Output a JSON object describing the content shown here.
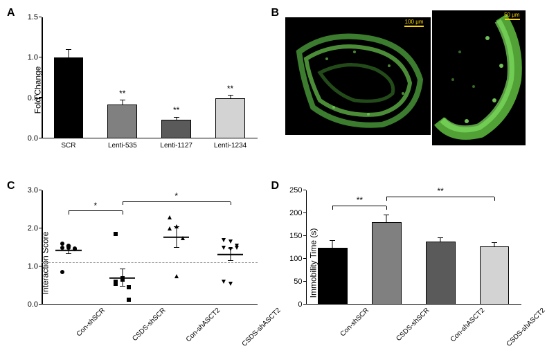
{
  "panelA": {
    "label": "A",
    "type": "bar",
    "ylabel": "Fold Change",
    "ylim": [
      0,
      1.5
    ],
    "yticks": [
      0.0,
      0.5,
      1.0,
      1.5
    ],
    "categories": [
      "SCR",
      "Lenti-535",
      "Lenti-1127",
      "Lenti-1234"
    ],
    "values": [
      1.0,
      0.42,
      0.23,
      0.5
    ],
    "errors": [
      0.1,
      0.05,
      0.03,
      0.03
    ],
    "bar_colors": [
      "#000000",
      "#808080",
      "#5a5a5a",
      "#d3d3d3"
    ],
    "sig_marks": [
      "",
      "**",
      "**",
      "**"
    ]
  },
  "panelB": {
    "label": "B",
    "left_scale": "100 μm",
    "right_scale": "50 μm"
  },
  "panelC": {
    "label": "C",
    "type": "scatter",
    "ylabel": "Interaction Score",
    "ylim": [
      0,
      3
    ],
    "yticks": [
      0,
      1,
      2,
      3
    ],
    "dashed_at": 1.1,
    "categories": [
      "Con-shSCR",
      "CSDS-shSCR",
      "Con-shASCT2",
      "CSDS-shASCT2"
    ],
    "markers": [
      "circle",
      "square",
      "triangle-up",
      "triangle-down"
    ],
    "groups": [
      {
        "points": [
          1.5,
          1.55,
          1.45,
          1.6,
          1.5,
          1.48,
          0.85
        ],
        "mean": 1.42,
        "sem": 0.1
      },
      {
        "points": [
          1.85,
          0.65,
          0.45,
          0.6,
          0.7,
          0.12,
          0.55
        ],
        "mean": 0.7,
        "sem": 0.22
      },
      {
        "points": [
          2.3,
          2.05,
          1.75,
          2.0,
          0.75
        ],
        "mean": 1.77,
        "sem": 0.27
      },
      {
        "points": [
          1.7,
          1.65,
          1.55,
          1.5,
          1.45,
          1.5,
          0.6,
          0.55
        ],
        "mean": 1.31,
        "sem": 0.16
      }
    ],
    "sig_pairs": [
      {
        "from": 0,
        "to": 1,
        "label": "*",
        "y": 2.45
      },
      {
        "from": 1,
        "to": 3,
        "label": "*",
        "y": 2.7
      }
    ]
  },
  "panelD": {
    "label": "D",
    "type": "bar",
    "ylabel": "Immobility Time (s)",
    "ylim": [
      0,
      250
    ],
    "yticks": [
      0,
      50,
      100,
      150,
      200,
      250
    ],
    "categories": [
      "Con-shSCR",
      "CSDS-shSCR",
      "Con-shASCT2",
      "CSDS-shASCT2"
    ],
    "values": [
      124,
      181,
      138,
      127
    ],
    "errors": [
      16,
      14,
      8,
      8
    ],
    "bar_colors": [
      "#000000",
      "#808080",
      "#5a5a5a",
      "#d3d3d3"
    ],
    "sig_pairs": [
      {
        "from": 0,
        "to": 1,
        "label": "**",
        "y": 215
      },
      {
        "from": 1,
        "to": 3,
        "label": "**",
        "y": 235
      }
    ]
  }
}
